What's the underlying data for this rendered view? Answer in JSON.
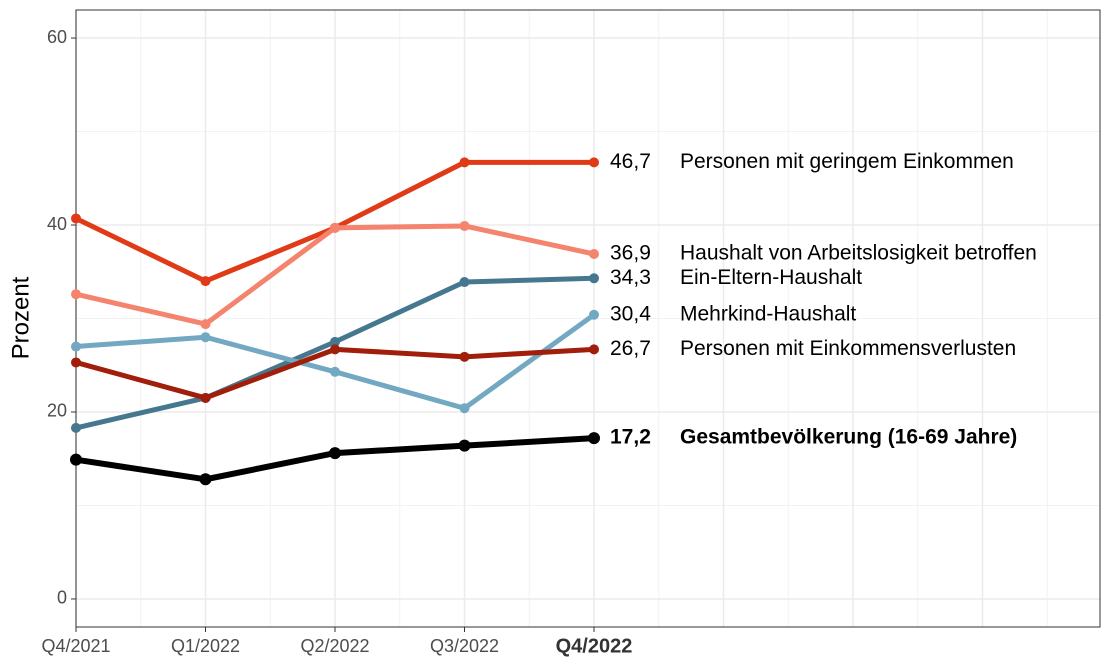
{
  "chart_data": {
    "type": "line",
    "y_label": "Prozent",
    "categories": [
      "Q4/2021",
      "Q1/2022",
      "Q2/2022",
      "Q3/2022",
      "Q4/2022"
    ],
    "highlight_category": 4,
    "ylim": [
      -3,
      63
    ],
    "yticks": [
      0,
      20,
      40,
      60
    ],
    "grid": true,
    "series": [
      {
        "name": "Personen mit geringem Einkommen",
        "color": "#e03a17",
        "values": [
          40.7,
          34.0,
          39.7,
          46.7,
          46.7
        ],
        "value_labels": [
          null,
          null,
          null,
          null,
          "46,7"
        ]
      },
      {
        "name": "Haushalt von Arbeitslosigkeit betroffen",
        "color": "#f4846e",
        "values": [
          32.6,
          29.4,
          39.7,
          39.9,
          36.9
        ],
        "value_labels": [
          null,
          null,
          null,
          null,
          "36,9"
        ]
      },
      {
        "name": "Ein-Eltern-Haushalt",
        "color": "#45788f",
        "values": [
          18.3,
          21.5,
          27.5,
          33.9,
          34.3
        ],
        "value_labels": [
          null,
          null,
          null,
          null,
          "34,3"
        ]
      },
      {
        "name": "Mehrkind-Haushalt",
        "color": "#72a8c2",
        "values": [
          27.0,
          28.0,
          24.3,
          20.4,
          30.4
        ],
        "value_labels": [
          null,
          null,
          null,
          null,
          "30,4"
        ]
      },
      {
        "name": "Personen mit Einkommensverlusten",
        "color": "#a01e0a",
        "values": [
          25.3,
          21.5,
          26.7,
          25.9,
          26.7
        ],
        "value_labels": [
          null,
          null,
          null,
          null,
          "26,7"
        ]
      },
      {
        "name": "Gesamtbevölkerung (16-69 Jahre)",
        "color": "#000000",
        "highlight": true,
        "values": [
          14.9,
          12.8,
          15.6,
          16.4,
          17.2
        ],
        "value_labels": [
          null,
          null,
          null,
          null,
          "17,2"
        ]
      }
    ]
  }
}
